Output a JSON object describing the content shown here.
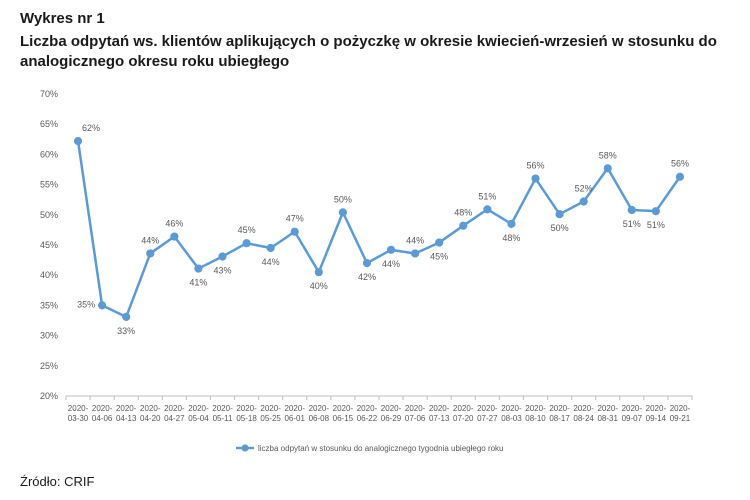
{
  "header": {
    "figure_label": "Wykres nr 1",
    "title": "Liczba odpytań ws. klientów aplikujących o pożyczkę w okresie kwiecień-wrzesień w stosunku do analogicznego okresu roku ubiegłego"
  },
  "source": "Źródło: CRIF",
  "chart_data": {
    "type": "line",
    "x": [
      "2020-03-30",
      "2020-04-06",
      "2020-04-13",
      "2020-04-20",
      "2020-04-27",
      "2020-05-04",
      "2020-05-11",
      "2020-05-18",
      "2020-05-25",
      "2020-06-01",
      "2020-06-08",
      "2020-06-15",
      "2020-06-22",
      "2020-06-29",
      "2020-07-06",
      "2020-07-13",
      "2020-07-20",
      "2020-07-27",
      "2020-08-03",
      "2020-08-10",
      "2020-08-17",
      "2020-08-24",
      "2020-08-31",
      "2020-09-07",
      "2020-09-14",
      "2020-09-21"
    ],
    "x_tick_labels": [
      [
        "2020-",
        "03-30"
      ],
      [
        "2020-",
        "04-06"
      ],
      [
        "2020-",
        "04-13"
      ],
      [
        "2020-",
        "04-20"
      ],
      [
        "2020-",
        "04-27"
      ],
      [
        "2020-",
        "05-04"
      ],
      [
        "2020-",
        "05-11"
      ],
      [
        "2020-",
        "05-18"
      ],
      [
        "2020-",
        "05-25"
      ],
      [
        "2020-",
        "06-01"
      ],
      [
        "2020-",
        "06-08"
      ],
      [
        "2020-",
        "06-15"
      ],
      [
        "2020-",
        "06-22"
      ],
      [
        "2020-",
        "06-29"
      ],
      [
        "2020-",
        "07-06"
      ],
      [
        "2020-",
        "07-13"
      ],
      [
        "2020-",
        "07-20"
      ],
      [
        "2020-",
        "07-27"
      ],
      [
        "2020-",
        "08-03"
      ],
      [
        "2020-",
        "08-10"
      ],
      [
        "2020-",
        "08-17"
      ],
      [
        "2020-",
        "08-24"
      ],
      [
        "2020-",
        "08-31"
      ],
      [
        "2020-",
        "09-07"
      ],
      [
        "2020-",
        "09-14"
      ],
      [
        "2020-",
        "09-21"
      ]
    ],
    "series": [
      {
        "name": "liczba odpytań w stosunku do analogicznego tygodnia ubiegłego roku",
        "values": [
          62.2,
          35.0,
          33.1,
          43.6,
          46.4,
          41.1,
          43.1,
          45.3,
          44.5,
          47.2,
          40.5,
          50.4,
          42.0,
          44.2,
          43.6,
          45.4,
          48.2,
          50.9,
          48.5,
          56.0,
          50.1,
          52.2,
          57.7,
          50.8,
          50.6,
          56.3
        ],
        "data_labels": [
          "62%",
          "35%",
          "33%",
          "44%",
          "46%",
          "41%",
          "43%",
          "45%",
          "44%",
          "47%",
          "40%",
          "50%",
          "42%",
          "44%",
          "44%",
          "45%",
          "48%",
          "51%",
          "48%",
          "56%",
          "50%",
          "52%",
          "58%",
          "51%",
          "51%",
          "56%"
        ],
        "label_side": [
          "right",
          "above",
          "below",
          "above",
          "above",
          "below",
          "below",
          "above",
          "below",
          "above",
          "below",
          "above",
          "below",
          "below",
          "above",
          "below",
          "above",
          "above",
          "below",
          "above",
          "below",
          "above",
          "above",
          "below",
          "below",
          "above"
        ],
        "color": "#5b9bd5"
      }
    ],
    "y_ticks": [
      20,
      25,
      30,
      35,
      40,
      45,
      50,
      55,
      60,
      65,
      70
    ],
    "y_tick_labels": [
      "20%",
      "25%",
      "30%",
      "35%",
      "40%",
      "45%",
      "50%",
      "55%",
      "60%",
      "65%",
      "70%"
    ],
    "ylim": [
      20,
      70
    ],
    "y_unit": "%",
    "grid": false,
    "legend_position": "bottom-center",
    "axis_color": "#bfbfbf",
    "label_color": "#595959"
  }
}
